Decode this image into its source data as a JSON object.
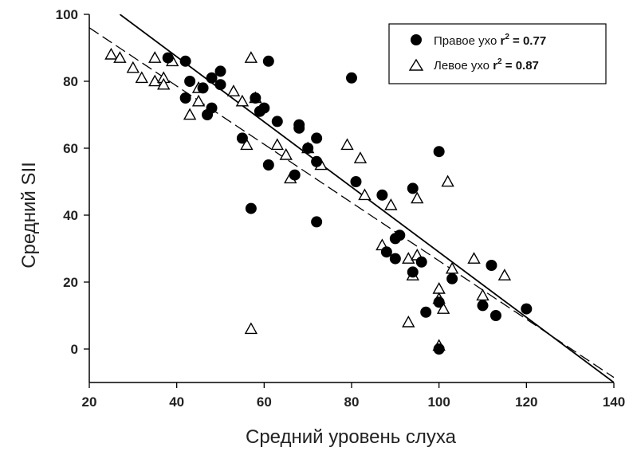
{
  "chart_data": {
    "type": "scatter",
    "xlabel": "Средний уровень слуха",
    "ylabel": "Средний SII",
    "xlim": [
      20,
      140
    ],
    "ylim": [
      -10,
      100
    ],
    "xticks": [
      20,
      40,
      60,
      80,
      100,
      120,
      140
    ],
    "yticks": [
      0,
      20,
      40,
      60,
      80,
      100
    ],
    "grid": false,
    "legend_position": "top-right",
    "series": [
      {
        "name": "Правое ухо",
        "r2_label": "r",
        "r2_sup": "2",
        "r2_value": " = 0.77",
        "marker": "filled-circle",
        "color": "#000000",
        "points": [
          [
            38,
            87
          ],
          [
            42,
            86
          ],
          [
            43,
            80
          ],
          [
            42,
            75
          ],
          [
            46,
            78
          ],
          [
            48,
            81
          ],
          [
            50,
            83
          ],
          [
            50,
            79
          ],
          [
            47,
            70
          ],
          [
            48,
            72
          ],
          [
            55,
            63
          ],
          [
            58,
            75
          ],
          [
            59,
            71
          ],
          [
            60,
            72
          ],
          [
            61,
            55
          ],
          [
            61,
            86
          ],
          [
            63,
            68
          ],
          [
            67,
            52
          ],
          [
            68,
            67
          ],
          [
            68,
            66
          ],
          [
            70,
            60
          ],
          [
            72,
            63
          ],
          [
            72,
            56
          ],
          [
            57,
            42
          ],
          [
            72,
            38
          ],
          [
            80,
            81
          ],
          [
            81,
            50
          ],
          [
            87,
            46
          ],
          [
            88,
            29
          ],
          [
            90,
            33
          ],
          [
            91,
            34
          ],
          [
            90,
            27
          ],
          [
            94,
            48
          ],
          [
            94,
            23
          ],
          [
            96,
            26
          ],
          [
            97,
            11
          ],
          [
            100,
            59
          ],
          [
            100,
            14
          ],
          [
            100,
            0
          ],
          [
            103,
            21
          ],
          [
            110,
            13
          ],
          [
            112,
            25
          ],
          [
            113,
            10
          ],
          [
            120,
            12
          ]
        ],
        "fit": {
          "style": "solid",
          "x": [
            27,
            140
          ],
          "y": [
            100,
            -10
          ]
        }
      },
      {
        "name": "Левое ухо",
        "r2_label": "r",
        "r2_sup": "2",
        "r2_value": " = 0.87",
        "marker": "open-triangle",
        "color": "#000000",
        "points": [
          [
            25,
            88
          ],
          [
            27,
            87
          ],
          [
            30,
            84
          ],
          [
            32,
            81
          ],
          [
            35,
            87
          ],
          [
            35,
            80
          ],
          [
            37,
            81
          ],
          [
            37,
            79
          ],
          [
            39,
            86
          ],
          [
            43,
            70
          ],
          [
            45,
            78
          ],
          [
            45,
            74
          ],
          [
            53,
            77
          ],
          [
            55,
            74
          ],
          [
            56,
            61
          ],
          [
            57,
            87
          ],
          [
            57,
            6
          ],
          [
            58,
            75
          ],
          [
            63,
            61
          ],
          [
            65,
            58
          ],
          [
            66,
            51
          ],
          [
            70,
            60
          ],
          [
            73,
            55
          ],
          [
            79,
            61
          ],
          [
            82,
            57
          ],
          [
            83,
            46
          ],
          [
            87,
            31
          ],
          [
            89,
            43
          ],
          [
            93,
            27
          ],
          [
            93,
            8
          ],
          [
            94,
            22
          ],
          [
            95,
            45
          ],
          [
            95,
            28
          ],
          [
            100,
            18
          ],
          [
            100,
            15
          ],
          [
            100,
            1
          ],
          [
            101,
            12
          ],
          [
            102,
            50
          ],
          [
            103,
            24
          ],
          [
            108,
            27
          ],
          [
            110,
            16
          ],
          [
            115,
            22
          ]
        ],
        "fit": {
          "style": "dashed",
          "x": [
            20,
            140
          ],
          "y": [
            96,
            -8.5
          ]
        }
      }
    ]
  }
}
